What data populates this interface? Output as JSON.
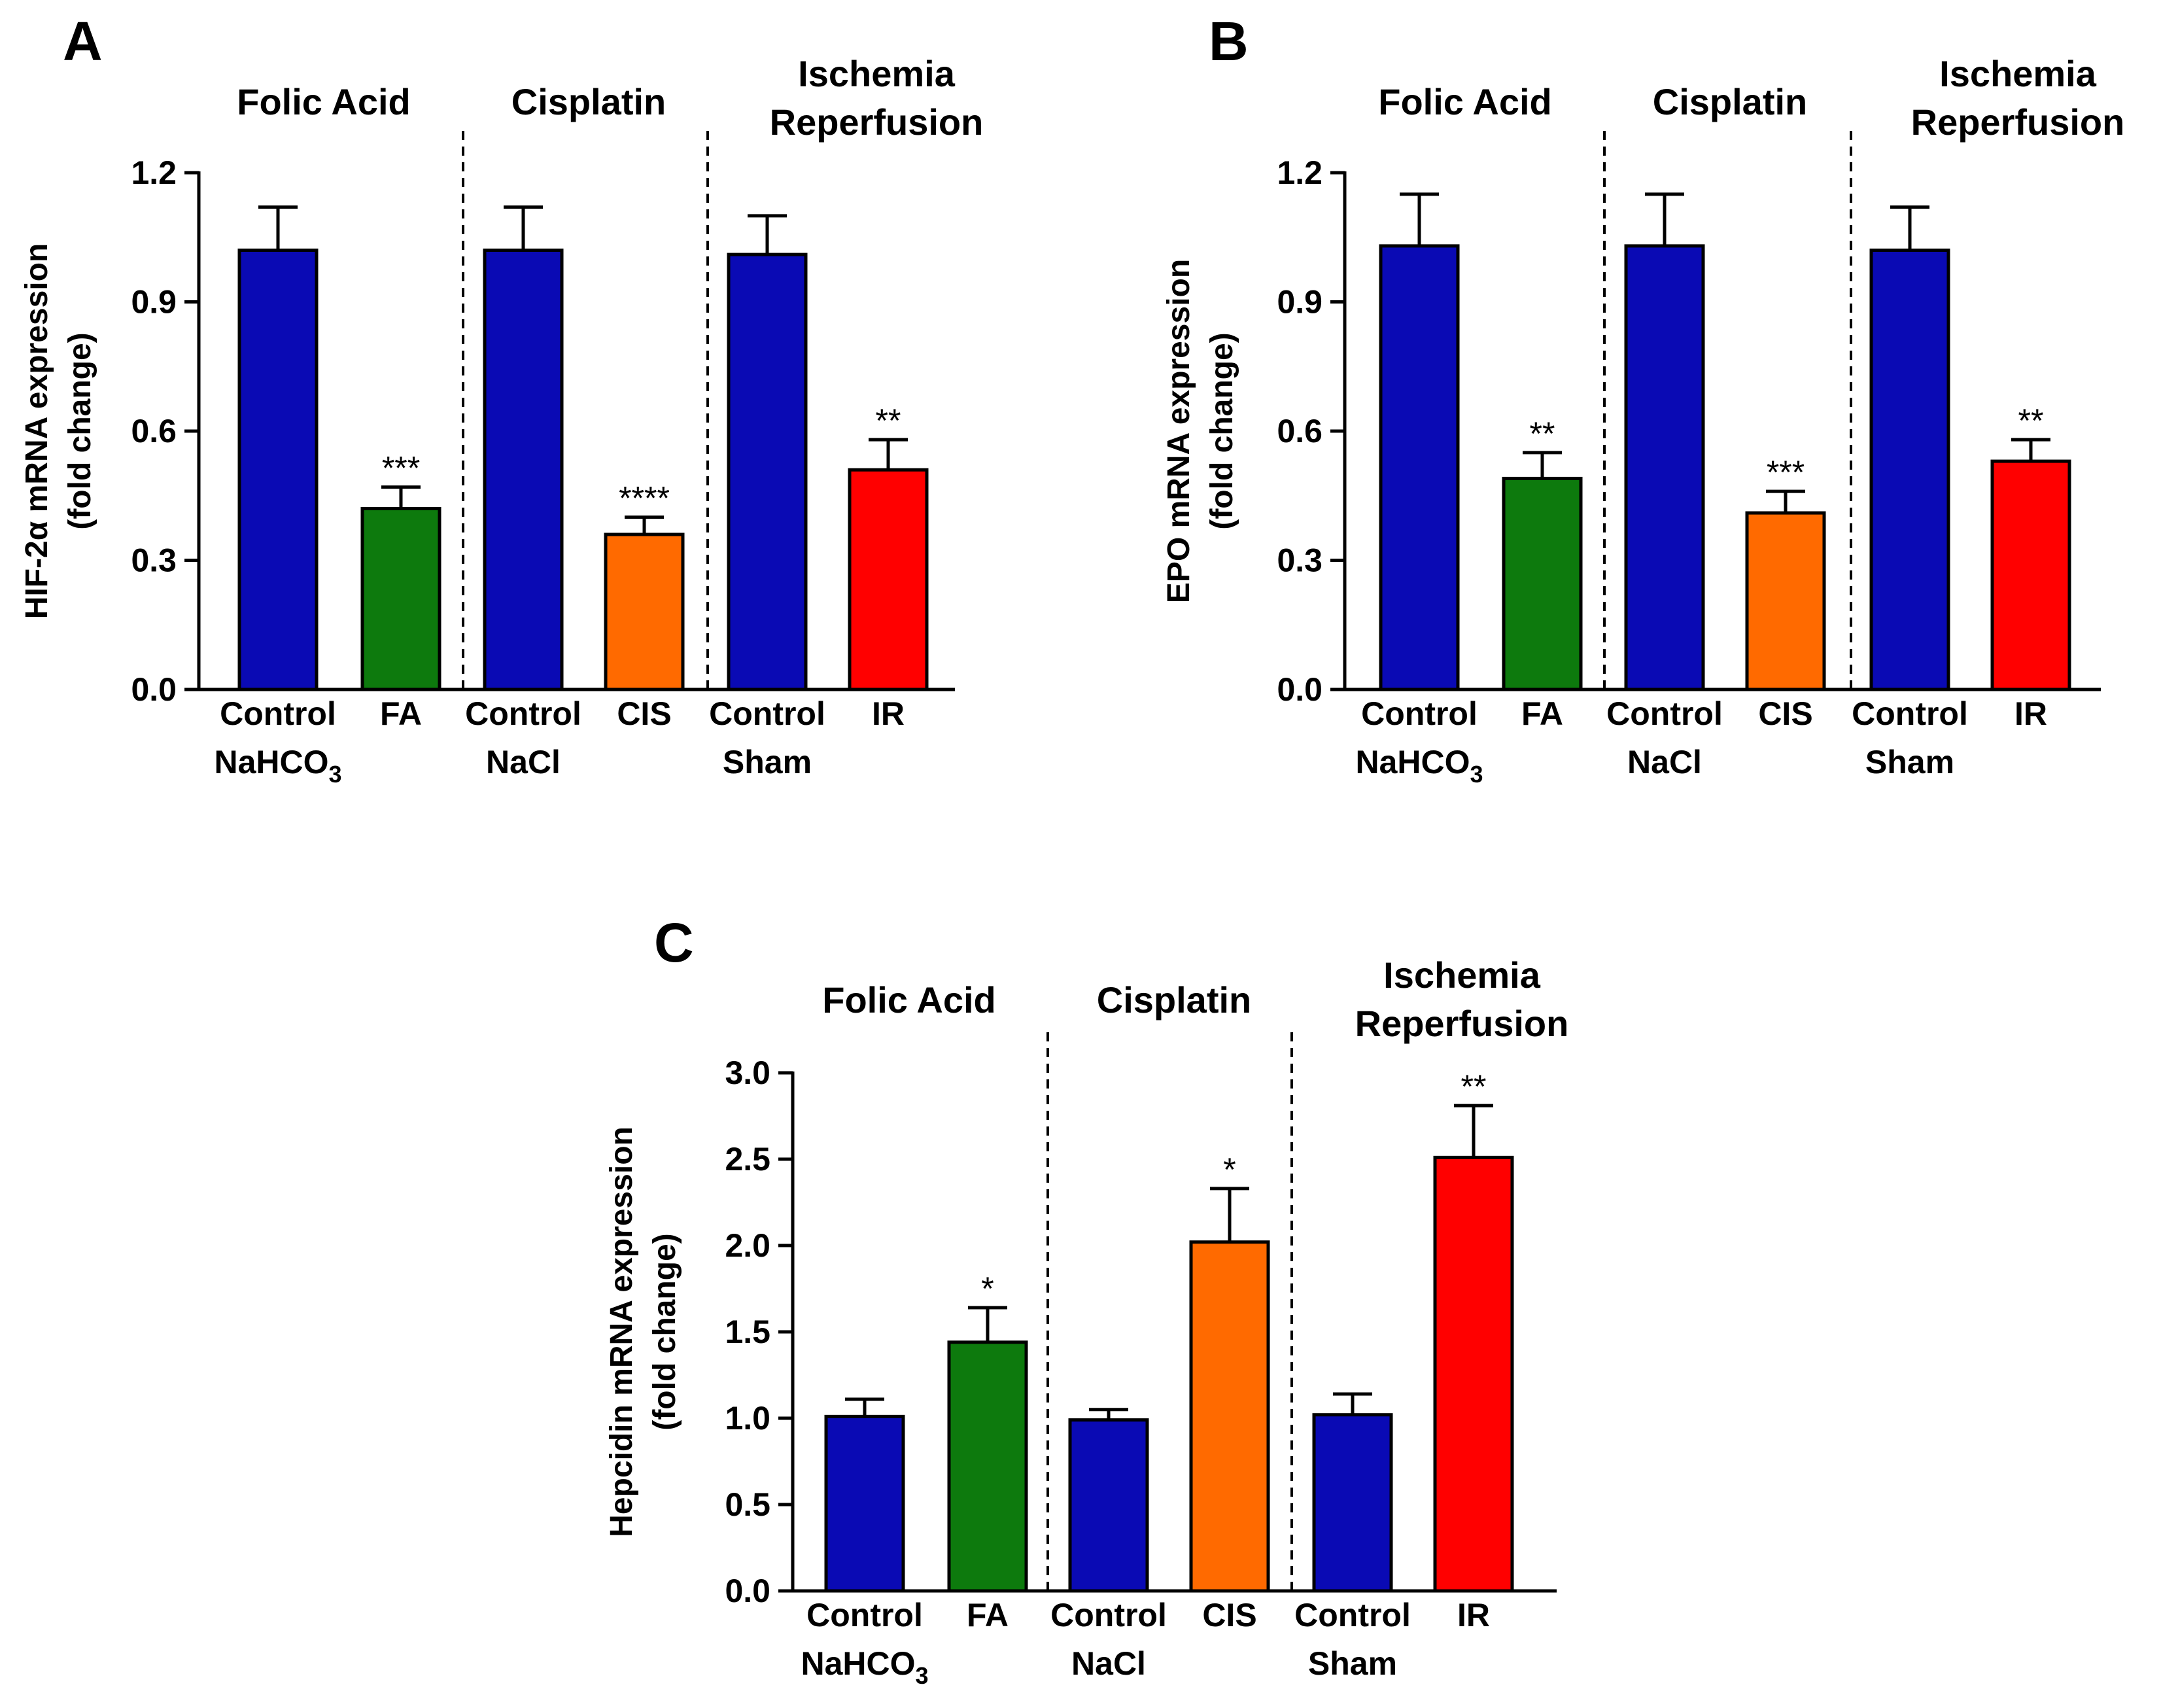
{
  "chart_data": [
    {
      "panel": "A",
      "type": "bar",
      "ylabel": [
        "HIF-2α mRNA expression",
        "(fold change)"
      ],
      "ylim": [
        0,
        1.2
      ],
      "yticks": [
        "0.0",
        "0.3",
        "0.6",
        "0.9",
        "1.2"
      ],
      "groups": [
        {
          "title": [
            "Folic Acid"
          ],
          "categories": [
            [
              "Control",
              "NaHCO",
              "3"
            ],
            [
              "FA"
            ]
          ]
        },
        {
          "title": [
            "Cisplatin"
          ],
          "categories": [
            [
              "Control",
              "NaCl"
            ],
            [
              "CIS"
            ]
          ]
        },
        {
          "title": [
            "Ischemia",
            "Reperfusion"
          ],
          "categories": [
            [
              "Control",
              "Sham"
            ],
            [
              "IR"
            ]
          ]
        }
      ],
      "values": [
        1.02,
        0.42,
        1.02,
        0.36,
        1.01,
        0.51
      ],
      "errors": [
        0.1,
        0.05,
        0.1,
        0.04,
        0.09,
        0.07
      ],
      "significance": [
        "",
        "***",
        "",
        "****",
        "",
        "**"
      ],
      "colors": [
        "#0a0ab4",
        "#0d7a0d",
        "#0a0ab4",
        "#ff6a00",
        "#0a0ab4",
        "#ff0000"
      ]
    },
    {
      "panel": "B",
      "type": "bar",
      "ylabel": [
        "EPO mRNA expression",
        "(fold change)"
      ],
      "ylim": [
        0,
        1.2
      ],
      "yticks": [
        "0.0",
        "0.3",
        "0.6",
        "0.9",
        "1.2"
      ],
      "groups": [
        {
          "title": [
            "Folic Acid"
          ],
          "categories": [
            [
              "Control",
              "NaHCO",
              "3"
            ],
            [
              "FA"
            ]
          ]
        },
        {
          "title": [
            "Cisplatin"
          ],
          "categories": [
            [
              "Control",
              "NaCl"
            ],
            [
              "CIS"
            ]
          ]
        },
        {
          "title": [
            "Ischemia",
            "Reperfusion"
          ],
          "categories": [
            [
              "Control",
              "Sham"
            ],
            [
              "IR"
            ]
          ]
        }
      ],
      "values": [
        1.03,
        0.49,
        1.03,
        0.41,
        1.02,
        0.53
      ],
      "errors": [
        0.12,
        0.06,
        0.12,
        0.05,
        0.1,
        0.05
      ],
      "significance": [
        "",
        "**",
        "",
        "***",
        "",
        "**"
      ],
      "colors": [
        "#0a0ab4",
        "#0d7a0d",
        "#0a0ab4",
        "#ff6a00",
        "#0a0ab4",
        "#ff0000"
      ]
    },
    {
      "panel": "C",
      "type": "bar",
      "ylabel": [
        "Hepcidin mRNA expression",
        "(fold change)"
      ],
      "ylim": [
        0,
        3.0
      ],
      "yticks": [
        "0.0",
        "0.5",
        "1.0",
        "1.5",
        "2.0",
        "2.5",
        "3.0"
      ],
      "groups": [
        {
          "title": [
            "Folic Acid"
          ],
          "categories": [
            [
              "Control",
              "NaHCO",
              "3"
            ],
            [
              "FA"
            ]
          ]
        },
        {
          "title": [
            "Cisplatin"
          ],
          "categories": [
            [
              "Control",
              "NaCl"
            ],
            [
              "CIS"
            ]
          ]
        },
        {
          "title": [
            "Ischemia",
            "Reperfusion"
          ],
          "categories": [
            [
              "Control",
              "Sham"
            ],
            [
              "IR"
            ]
          ]
        }
      ],
      "values": [
        1.01,
        1.44,
        0.99,
        2.02,
        1.02,
        2.51
      ],
      "errors": [
        0.1,
        0.2,
        0.06,
        0.31,
        0.12,
        0.3
      ],
      "significance": [
        "",
        "*",
        "",
        "*",
        "",
        "**"
      ],
      "colors": [
        "#0a0ab4",
        "#0d7a0d",
        "#0a0ab4",
        "#ff6a00",
        "#0a0ab4",
        "#ff0000"
      ]
    }
  ]
}
